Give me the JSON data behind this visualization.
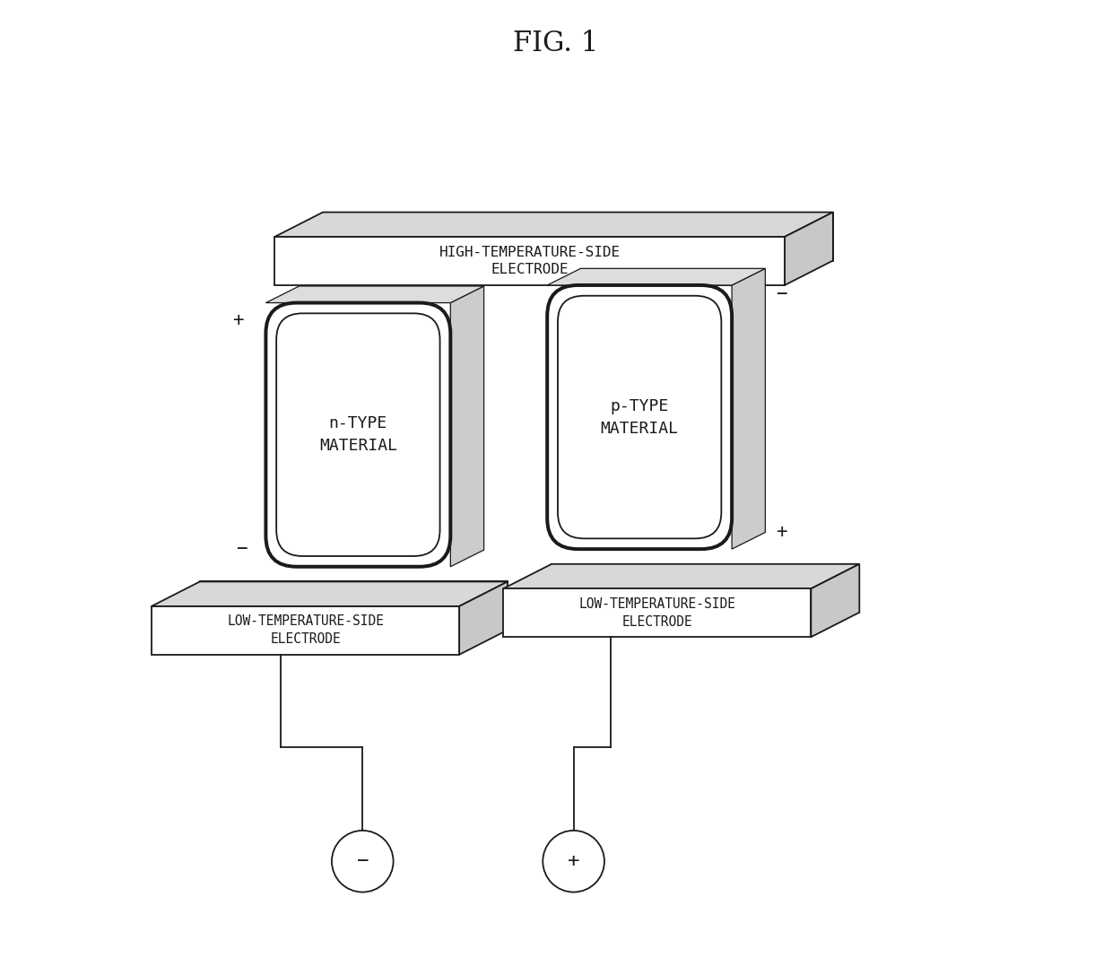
{
  "title": "FIG. 1",
  "background_color": "#ffffff",
  "line_color": "#1a1a1a",
  "fill_color": "#ffffff",
  "edge_color_dark": "#888888",
  "edge_color_mid": "#bbbbbb",
  "figsize": [
    12.4,
    10.87
  ],
  "dpi": 100,
  "high_temp_electrode_label": "HIGH-TEMPERATURE-SIDE\nELECTRODE",
  "low_temp_electrode_left_label": "LOW-TEMPERATURE-SIDE\nELECTRODE",
  "low_temp_electrode_right_label": "LOW-TEMPERATURE-SIDE\nELECTRODE",
  "n_type_label": "n-TYPE\nMATERIAL",
  "p_type_label": "p-TYPE\nMATERIAL"
}
